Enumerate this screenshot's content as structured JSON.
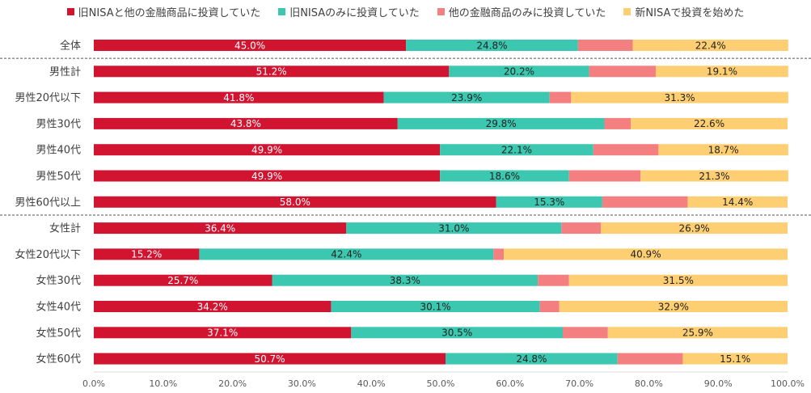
{
  "chart_data": {
    "type": "bar",
    "orientation": "horizontal",
    "stacked": true,
    "categories": [
      "全体",
      "男性計",
      "男性20代以下",
      "男性30代",
      "男性40代",
      "男性50代",
      "男性60代以上",
      "女性計",
      "女性20代以下",
      "女性30代",
      "女性40代",
      "女性50代",
      "女性60代"
    ],
    "series": [
      {
        "name": "旧NISAと他の金融商品に投資していた",
        "color": "#d11531",
        "label_color": "#ffffff",
        "show_labels": true,
        "values": [
          45.0,
          51.2,
          41.8,
          43.8,
          49.9,
          49.9,
          58.0,
          36.4,
          15.2,
          25.7,
          34.2,
          37.1,
          50.7
        ],
        "labels": [
          "45.0%",
          "51.2%",
          "41.8%",
          "43.8%",
          "49.9%",
          "49.9%",
          "58.0%",
          "36.4%",
          "15.2%",
          "25.7%",
          "34.2%",
          "37.1%",
          "50.7%"
        ]
      },
      {
        "name": "旧NISAのみに投資していた",
        "color": "#3cc8b0",
        "label_color": "#222222",
        "show_labels": true,
        "values": [
          24.8,
          20.2,
          23.9,
          29.8,
          22.1,
          18.6,
          15.3,
          31.0,
          42.4,
          38.3,
          30.1,
          30.5,
          24.8
        ],
        "labels": [
          "24.8%",
          "20.2%",
          "23.9%",
          "29.8%",
          "22.1%",
          "18.6%",
          "15.3%",
          "31.0%",
          "42.4%",
          "38.3%",
          "30.1%",
          "30.5%",
          "24.8%"
        ]
      },
      {
        "name": "他の金融商品のみに投資していた",
        "color": "#f47f80",
        "label_color": "#222222",
        "show_labels": false,
        "values": [
          7.9,
          9.6,
          3.1,
          3.8,
          9.4,
          10.3,
          12.3,
          5.7,
          1.5,
          4.5,
          2.8,
          6.5,
          9.4
        ],
        "labels": []
      },
      {
        "name": "新NISAで投資を始めた",
        "color": "#fecf72",
        "label_color": "#222222",
        "show_labels": true,
        "values": [
          22.4,
          19.1,
          31.3,
          22.6,
          18.7,
          21.3,
          14.4,
          26.9,
          40.9,
          31.5,
          32.9,
          25.9,
          15.1
        ],
        "labels": [
          "22.4%",
          "19.1%",
          "31.3%",
          "22.6%",
          "18.7%",
          "21.3%",
          "14.4%",
          "26.9%",
          "40.9%",
          "31.5%",
          "32.9%",
          "25.9%",
          "15.1%"
        ]
      }
    ],
    "x_ticks": [
      "0.0%",
      "10.0%",
      "20.0%",
      "30.0%",
      "40.0%",
      "50.0%",
      "60.0%",
      "70.0%",
      "80.0%",
      "90.0%",
      "100.0%"
    ],
    "xlim": [
      0,
      100
    ],
    "separators_after_category": [
      "全体",
      "男性60代以上"
    ],
    "legend_position": "top",
    "grid": false
  }
}
